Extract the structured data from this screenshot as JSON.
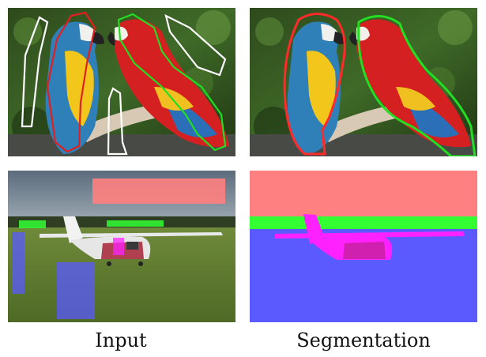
{
  "figure": {
    "captions": {
      "left": "Input",
      "right": "Segmentation"
    },
    "colors": {
      "red_label": "#ff2a2a",
      "green_label": "#22dd22",
      "white_label": "#ffffff",
      "sky_label": "#ff8080",
      "ground_label": "#5a5aff",
      "tree_label": "#33ff33",
      "plane_label": "#ff22ff"
    }
  }
}
